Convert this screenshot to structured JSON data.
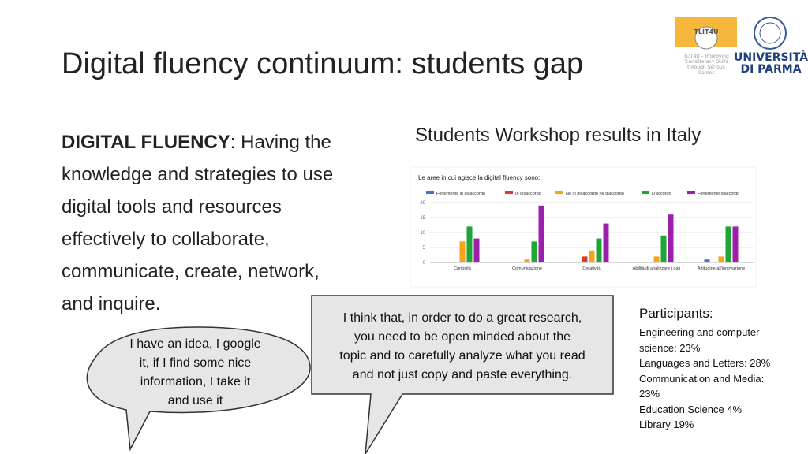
{
  "header": {
    "title": "Digital fluency continuum: students gap",
    "logos": {
      "project_name": "TLIT4U",
      "project_tagline": [
        "TLIT4U – Improving",
        "Transliteracy Skills",
        "through Serious",
        "Games"
      ],
      "university": [
        "UNIVERSITÀ",
        "DI PARMA"
      ]
    }
  },
  "definition": {
    "term": "DIGITAL FLUENCY",
    "lines": [
      ": Having the",
      "knowledge and strategies to use",
      "digital tools and resources",
      "effectively to collaborate,",
      "communicate, create, network,",
      "and inquire."
    ]
  },
  "chart_heading": "Students Workshop results in Italy",
  "chart": {
    "type": "bar",
    "title": "Le aree in cui agisce la digital fluency sono:",
    "categories": [
      "Curiosità",
      "Comunicazione",
      "Creatività",
      "Abilità di analizzare i dati",
      "Attitudine all'innovazione"
    ],
    "series": [
      {
        "name": "Fortemente in disaccordo",
        "color": "#4472c4",
        "values": [
          0,
          0,
          0,
          0,
          1
        ]
      },
      {
        "name": "In disaccordo",
        "color": "#db3b27",
        "values": [
          0,
          0,
          2,
          0,
          0
        ]
      },
      {
        "name": "Né in disaccordo né d'accordo",
        "color": "#f7a21b",
        "values": [
          7,
          1,
          4,
          2,
          2
        ]
      },
      {
        "name": "D'accordo",
        "color": "#1ea534",
        "values": [
          12,
          7,
          8,
          9,
          12
        ]
      },
      {
        "name": "Fortemente d'accordo",
        "color": "#9c1fac",
        "values": [
          8,
          19,
          13,
          16,
          12
        ]
      }
    ],
    "ylim": [
      0,
      20
    ],
    "yticks": [
      0,
      5,
      10,
      15,
      20
    ],
    "grid": true
  },
  "bubbles": {
    "left": [
      "I have an idea, I google",
      "it, if I find some nice",
      "information, I take it",
      "and use it"
    ],
    "center": [
      "I think that, in order to do a great research,",
      "you need to be open minded about the",
      "topic and to carefully analyze what you read",
      "and not just copy and paste everything."
    ]
  },
  "participants": {
    "title": "Participants:",
    "items": [
      "Engineering and computer science: 23%",
      "Languages and Letters: 28%",
      "Communication and Media: 23%",
      "Education Science 4%",
      "Library 19%"
    ]
  }
}
